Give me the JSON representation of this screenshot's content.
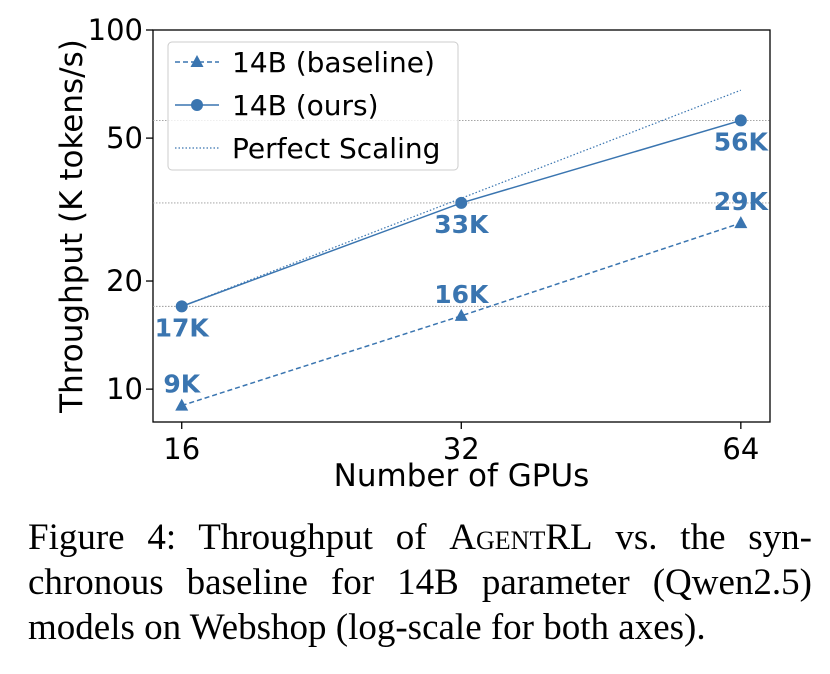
{
  "chart_data": {
    "type": "line",
    "x_label": "Number of GPUs",
    "y_label": "Throughput (K tokens/s)",
    "x": [
      16,
      32,
      64
    ],
    "xscale": "log",
    "yscale": "log",
    "xlim": [
      14.9,
      68.8
    ],
    "ylim": [
      8.1,
      100
    ],
    "xticks": [
      16,
      32,
      64
    ],
    "yticks": [
      10,
      20,
      50,
      100
    ],
    "legend": "upper left",
    "series": [
      {
        "name": "14B (baseline)",
        "color": "#3a75b0",
        "linestyle": "dashed",
        "marker": "triangle",
        "values": [
          9,
          16,
          29
        ],
        "value_labels": [
          "9K",
          "16K",
          "29K"
        ],
        "label_position": "above"
      },
      {
        "name": "14B (ours)",
        "color": "#3a75b0",
        "linestyle": "solid",
        "marker": "circle",
        "values": [
          17,
          33,
          56
        ],
        "value_labels": [
          "17K",
          "33K",
          "56K"
        ],
        "label_position": "below",
        "reference_lines": true
      },
      {
        "name": "Perfect Scaling",
        "color": "#3a75b0",
        "linestyle": "dotted",
        "marker": "none",
        "values": [
          17,
          34,
          68
        ]
      }
    ]
  },
  "caption": {
    "lines": [
      [
        "Figure 4: Throughput of ",
        "AgentRL",
        " vs. the syn-"
      ],
      [
        "chronous baseline for 14B parameter (Qwen2.5)"
      ],
      [
        "models on Webshop (log-scale for both axes)."
      ]
    ]
  }
}
